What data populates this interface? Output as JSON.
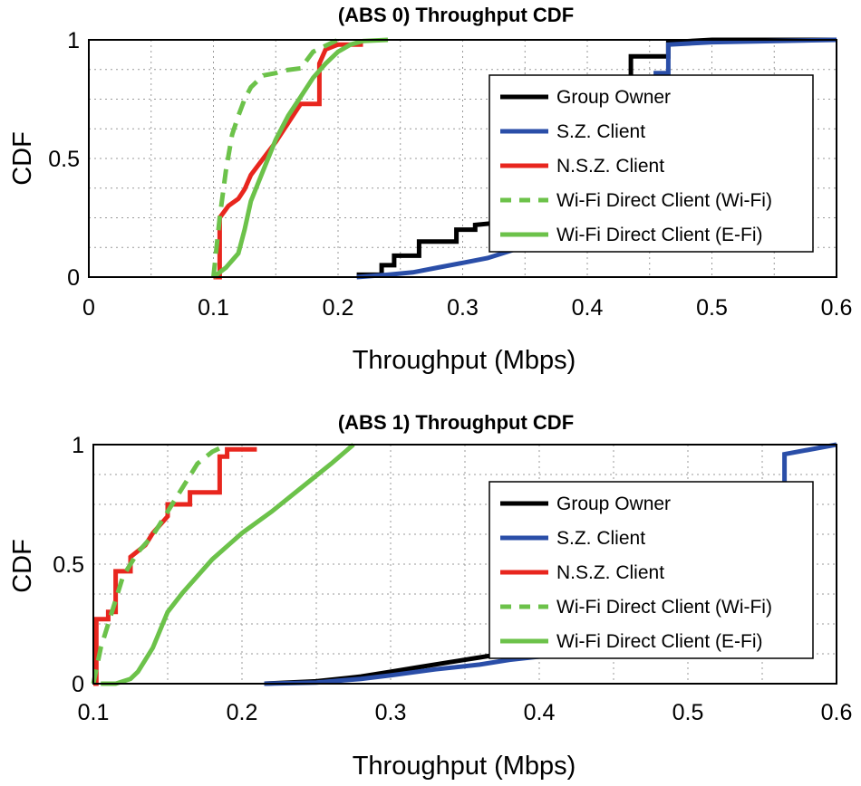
{
  "chart_data": [
    {
      "type": "line",
      "title": "(ABS 0) Throughput CDF",
      "xlabel": "Throughput (Mbps)",
      "ylabel": "CDF",
      "xlim": [
        0,
        0.6
      ],
      "ylim": [
        0,
        1
      ],
      "xticks": [
        0,
        0.1,
        0.2,
        0.3,
        0.4,
        0.5,
        0.6
      ],
      "xtick_labels": [
        "0",
        "0.1",
        "0.2",
        "0.3",
        "0.4",
        "0.5",
        "0.6"
      ],
      "yticks": [
        0,
        0.5,
        1
      ],
      "ytick_labels": [
        "0",
        "0.5",
        "1"
      ],
      "grid": true,
      "legend_position": "right",
      "series": [
        {
          "name": "Group Owner",
          "color": "#000000",
          "style": "solid",
          "x": [
            0.215,
            0.235,
            0.235,
            0.245,
            0.245,
            0.265,
            0.265,
            0.295,
            0.295,
            0.31,
            0.31,
            0.35,
            0.38,
            0.42,
            0.43,
            0.43,
            0.435,
            0.435,
            0.45,
            0.465,
            0.465,
            0.5,
            0.6
          ],
          "y": [
            0.01,
            0.01,
            0.05,
            0.05,
            0.09,
            0.09,
            0.15,
            0.15,
            0.2,
            0.2,
            0.22,
            0.24,
            0.26,
            0.27,
            0.27,
            0.8,
            0.8,
            0.93,
            0.93,
            0.93,
            0.99,
            1.0,
            1.0
          ]
        },
        {
          "name": "S.Z. Client",
          "color": "#2a4ea8",
          "style": "solid",
          "x": [
            0.215,
            0.24,
            0.26,
            0.28,
            0.3,
            0.32,
            0.35,
            0.38,
            0.42,
            0.44,
            0.44,
            0.455,
            0.455,
            0.465,
            0.465,
            0.5,
            0.6
          ],
          "y": [
            0.0,
            0.01,
            0.02,
            0.04,
            0.06,
            0.08,
            0.13,
            0.17,
            0.22,
            0.25,
            0.8,
            0.8,
            0.86,
            0.86,
            0.98,
            0.99,
            1.0
          ]
        },
        {
          "name": "N.S.Z. Client",
          "color": "#e8261e",
          "style": "solid",
          "x": [
            0.1,
            0.105,
            0.105,
            0.112,
            0.12,
            0.125,
            0.13,
            0.14,
            0.15,
            0.16,
            0.17,
            0.18,
            0.185,
            0.185,
            0.19,
            0.2,
            0.22
          ],
          "y": [
            0.0,
            0.0,
            0.25,
            0.3,
            0.33,
            0.37,
            0.43,
            0.5,
            0.57,
            0.65,
            0.73,
            0.73,
            0.73,
            0.9,
            0.96,
            0.98,
            0.98
          ]
        },
        {
          "name": "Wi-Fi Direct Client (Wi-Fi)",
          "color": "#6cc24a",
          "style": "dashed",
          "x": [
            0.1,
            0.105,
            0.11,
            0.115,
            0.12,
            0.125,
            0.13,
            0.14,
            0.15,
            0.155,
            0.17,
            0.18,
            0.2
          ],
          "y": [
            0.0,
            0.25,
            0.45,
            0.6,
            0.68,
            0.75,
            0.8,
            0.85,
            0.86,
            0.87,
            0.88,
            0.95,
            1.0
          ]
        },
        {
          "name": "Wi-Fi Direct Client (E-Fi)",
          "color": "#6cc24a",
          "style": "solid",
          "x": [
            0.1,
            0.105,
            0.11,
            0.115,
            0.12,
            0.125,
            0.13,
            0.14,
            0.15,
            0.16,
            0.17,
            0.18,
            0.19,
            0.2,
            0.21,
            0.22,
            0.24
          ],
          "y": [
            0.0,
            0.02,
            0.04,
            0.07,
            0.1,
            0.2,
            0.32,
            0.45,
            0.58,
            0.68,
            0.76,
            0.84,
            0.9,
            0.95,
            0.98,
            0.995,
            1.0
          ]
        }
      ]
    },
    {
      "type": "line",
      "title": "(ABS 1) Throughput CDF",
      "xlabel": "Throughput (Mbps)",
      "ylabel": "CDF",
      "xlim": [
        0.1,
        0.6
      ],
      "ylim": [
        0,
        1
      ],
      "xticks": [
        0.1,
        0.2,
        0.3,
        0.4,
        0.5,
        0.6
      ],
      "xtick_labels": [
        "0.1",
        "0.2",
        "0.3",
        "0.4",
        "0.5",
        "0.6"
      ],
      "yticks": [
        0,
        0.5,
        1
      ],
      "ytick_labels": [
        "0",
        "0.5",
        "1"
      ],
      "grid": true,
      "legend_position": "right",
      "series": [
        {
          "name": "Group Owner",
          "color": "#000000",
          "style": "solid",
          "x": [
            0.215,
            0.25,
            0.28,
            0.3,
            0.32,
            0.34,
            0.36,
            0.38,
            0.4
          ],
          "y": [
            0.0,
            0.01,
            0.03,
            0.05,
            0.07,
            0.09,
            0.11,
            0.13,
            0.14
          ]
        },
        {
          "name": "S.Z. Client",
          "color": "#2a4ea8",
          "style": "solid",
          "x": [
            0.215,
            0.25,
            0.28,
            0.3,
            0.33,
            0.36,
            0.38,
            0.41,
            0.56,
            0.565,
            0.565,
            0.6
          ],
          "y": [
            0.0,
            0.005,
            0.02,
            0.035,
            0.06,
            0.08,
            0.1,
            0.12,
            0.12,
            0.12,
            0.96,
            1.0
          ]
        },
        {
          "name": "N.S.Z. Client",
          "color": "#e8261e",
          "style": "solid",
          "x": [
            0.1,
            0.102,
            0.102,
            0.11,
            0.11,
            0.115,
            0.115,
            0.125,
            0.125,
            0.135,
            0.14,
            0.15,
            0.15,
            0.165,
            0.165,
            0.185,
            0.185,
            0.19,
            0.19,
            0.21
          ],
          "y": [
            0.0,
            0.0,
            0.27,
            0.27,
            0.3,
            0.3,
            0.47,
            0.47,
            0.53,
            0.58,
            0.63,
            0.7,
            0.75,
            0.75,
            0.8,
            0.8,
            0.95,
            0.95,
            0.98,
            0.98
          ]
        },
        {
          "name": "Wi-Fi Direct Client (Wi-Fi)",
          "color": "#6cc24a",
          "style": "dashed",
          "x": [
            0.1,
            0.105,
            0.11,
            0.115,
            0.12,
            0.13,
            0.14,
            0.15,
            0.16,
            0.17,
            0.18,
            0.19
          ],
          "y": [
            0.0,
            0.15,
            0.25,
            0.35,
            0.45,
            0.55,
            0.62,
            0.72,
            0.82,
            0.92,
            0.97,
            1.0
          ]
        },
        {
          "name": "Wi-Fi Direct Client (E-Fi)",
          "color": "#6cc24a",
          "style": "solid",
          "x": [
            0.105,
            0.115,
            0.125,
            0.13,
            0.14,
            0.15,
            0.16,
            0.18,
            0.2,
            0.22,
            0.24,
            0.26,
            0.275
          ],
          "y": [
            0.0,
            0.0,
            0.02,
            0.05,
            0.15,
            0.3,
            0.38,
            0.52,
            0.63,
            0.72,
            0.82,
            0.92,
            1.0
          ]
        }
      ]
    }
  ]
}
